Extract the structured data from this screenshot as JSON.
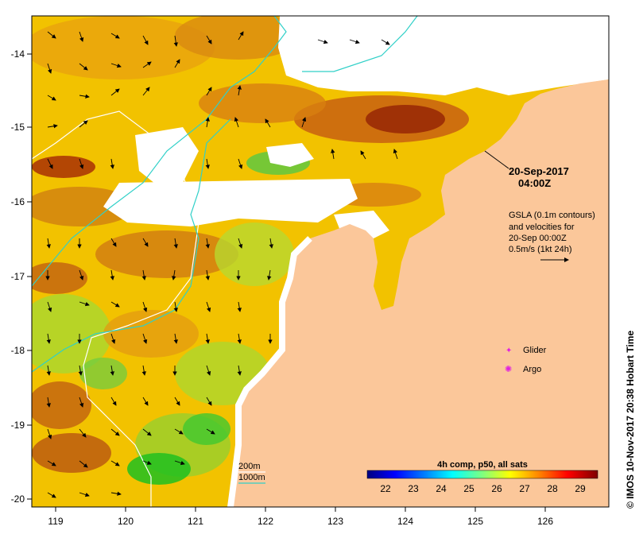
{
  "map": {
    "timestamp_date": "20-Sep-2017",
    "timestamp_time": "04:00Z",
    "gsla_lines": [
      "GSLA (0.1m contours)",
      "and velocities for",
      "20-Sep 00:00Z",
      "0.5m/s (1kt 24h)"
    ],
    "legend_glider": "Glider",
    "legend_argo": "Argo",
    "contour_200": "200m",
    "contour_1000": "1000m",
    "colorbar_title": "4h comp, p50, all sats",
    "credit": "© IMOS 10-Nov-2017 20:38 Hobart Time",
    "x_ticks": [
      "119",
      "120",
      "121",
      "122",
      "123",
      "124",
      "125",
      "126"
    ],
    "y_ticks": [
      "-14",
      "-15",
      "-16",
      "-17",
      "-18",
      "-19",
      "-20"
    ],
    "colorbar_ticks": [
      "22",
      "23",
      "24",
      "25",
      "26",
      "27",
      "28",
      "29"
    ],
    "colors": {
      "land": "#fbc79a",
      "glider": "#e020e0",
      "argo": "#e020e0",
      "contour_200": "#ffffff",
      "contour_1000": "#30d0c8"
    },
    "colorbar_colors": [
      "#00007f",
      "#0000ff",
      "#007fff",
      "#00ffff",
      "#7fff7f",
      "#ffff00",
      "#ff7f00",
      "#ff0000",
      "#7f0000"
    ]
  }
}
